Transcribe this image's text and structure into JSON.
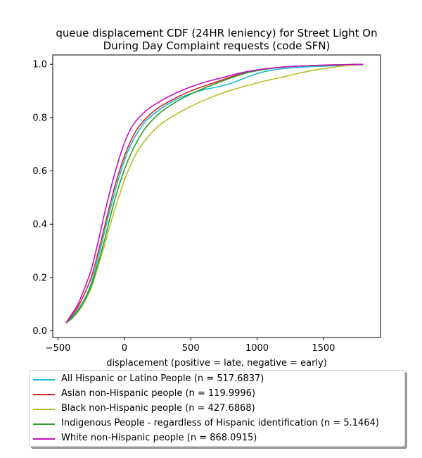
{
  "chart_data": {
    "type": "line",
    "title": "queue displacement CDF (24HR leniency) for Street Light On During Day Complaint  requests (code SFN)",
    "title_lines": [
      "queue displacement CDF (24HR leniency) for Street Light On",
      "During Day Complaint  requests (code SFN)"
    ],
    "xlabel": "displacement (positive = late, negative = early)",
    "ylabel": "",
    "xlim": [
      -540,
      1930
    ],
    "ylim": [
      -0.025,
      1.035
    ],
    "xticks": [
      -500,
      0,
      500,
      1000,
      1500
    ],
    "xtick_labels": [
      "−500",
      "0",
      "500",
      "1000",
      "1500"
    ],
    "yticks": [
      0.0,
      0.2,
      0.4,
      0.6,
      0.8,
      1.0
    ],
    "ytick_labels": [
      "0.0",
      "0.2",
      "0.4",
      "0.6",
      "0.8",
      "1.0"
    ],
    "legend_position": "below",
    "series": [
      {
        "name": "All Hispanic or Latino People (n = 517.6837)",
        "color": "#17becf",
        "x": [
          -440,
          -400,
          -350,
          -300,
          -250,
          -200,
          -150,
          -100,
          -50,
          0,
          50,
          100,
          150,
          200,
          250,
          300,
          400,
          500,
          600,
          700,
          800,
          900,
          1000,
          1100,
          1200,
          1300,
          1400,
          1500,
          1600,
          1700,
          1800
        ],
        "y": [
          0.03,
          0.05,
          0.08,
          0.12,
          0.18,
          0.27,
          0.37,
          0.47,
          0.56,
          0.64,
          0.7,
          0.745,
          0.78,
          0.805,
          0.825,
          0.842,
          0.87,
          0.89,
          0.905,
          0.915,
          0.928,
          0.947,
          0.965,
          0.977,
          0.984,
          0.988,
          0.991,
          0.993,
          0.995,
          0.997,
          0.998
        ]
      },
      {
        "name": "Asian non-Hispanic people (n = 119.9996)",
        "color": "#d62728",
        "x": [
          -440,
          -400,
          -350,
          -300,
          -250,
          -200,
          -150,
          -100,
          -50,
          0,
          50,
          100,
          150,
          200,
          250,
          300,
          400,
          500,
          600,
          700,
          800,
          900,
          1000,
          1100,
          1200,
          1300,
          1400,
          1500,
          1600,
          1700,
          1800
        ],
        "y": [
          0.03,
          0.055,
          0.09,
          0.14,
          0.2,
          0.29,
          0.39,
          0.49,
          0.58,
          0.655,
          0.715,
          0.76,
          0.79,
          0.815,
          0.835,
          0.85,
          0.877,
          0.9,
          0.918,
          0.935,
          0.952,
          0.968,
          0.978,
          0.985,
          0.99,
          0.993,
          0.995,
          0.996,
          0.998,
          0.999,
          1.0
        ]
      },
      {
        "name": "Black non-Hispanic people (n = 427.6868)",
        "color": "#bcbd22",
        "x": [
          -440,
          -400,
          -350,
          -300,
          -250,
          -200,
          -150,
          -100,
          -50,
          0,
          50,
          100,
          150,
          200,
          250,
          300,
          400,
          500,
          600,
          700,
          800,
          900,
          1000,
          1100,
          1200,
          1300,
          1400,
          1500,
          1600,
          1700,
          1800
        ],
        "y": [
          0.03,
          0.045,
          0.07,
          0.11,
          0.16,
          0.24,
          0.32,
          0.41,
          0.49,
          0.565,
          0.625,
          0.675,
          0.71,
          0.74,
          0.765,
          0.785,
          0.815,
          0.842,
          0.865,
          0.885,
          0.902,
          0.917,
          0.93,
          0.942,
          0.953,
          0.965,
          0.975,
          0.984,
          0.991,
          0.996,
          0.999
        ]
      },
      {
        "name": "Indigenous People - regardless of Hispanic identification (n = 5.1464)",
        "color": "#2ca02c",
        "x": [
          -440,
          -400,
          -350,
          -300,
          -250,
          -200,
          -150,
          -100,
          -50,
          0,
          50,
          100,
          150,
          200,
          250,
          300,
          400,
          500,
          600,
          700,
          800,
          900,
          1000,
          1100,
          1200,
          1300,
          1400,
          1500,
          1600,
          1700,
          1800
        ],
        "y": [
          0.03,
          0.045,
          0.075,
          0.115,
          0.17,
          0.25,
          0.34,
          0.44,
          0.53,
          0.605,
          0.665,
          0.715,
          0.755,
          0.785,
          0.81,
          0.83,
          0.862,
          0.888,
          0.91,
          0.93,
          0.948,
          0.965,
          0.976,
          0.984,
          0.99,
          0.993,
          0.995,
          0.997,
          0.998,
          0.999,
          1.0
        ]
      },
      {
        "name": "White non-Hispanic people (n = 868.0915)",
        "color": "#c40fc4",
        "x": [
          -440,
          -400,
          -350,
          -300,
          -250,
          -200,
          -150,
          -100,
          -50,
          0,
          50,
          100,
          150,
          200,
          250,
          300,
          400,
          500,
          600,
          700,
          800,
          900,
          1000,
          1100,
          1200,
          1300,
          1400,
          1500,
          1600,
          1700,
          1800
        ],
        "y": [
          0.03,
          0.06,
          0.1,
          0.16,
          0.23,
          0.33,
          0.44,
          0.54,
          0.63,
          0.705,
          0.76,
          0.795,
          0.82,
          0.84,
          0.855,
          0.87,
          0.895,
          0.915,
          0.932,
          0.945,
          0.958,
          0.97,
          0.979,
          0.985,
          0.99,
          0.993,
          0.995,
          0.997,
          0.998,
          0.999,
          1.0
        ]
      }
    ]
  }
}
